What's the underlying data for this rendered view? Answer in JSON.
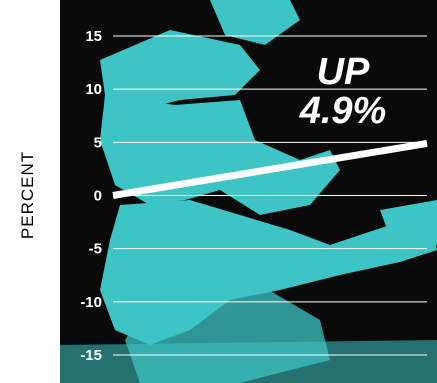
{
  "chart_data": {
    "type": "line",
    "ylabel": "PERCENT",
    "ylim": [
      -15,
      15
    ],
    "yticks": [
      "15",
      "10",
      "5",
      "0",
      "-5",
      "-10",
      "-15"
    ],
    "ytick_values": [
      15,
      10,
      5,
      0,
      -5,
      -10,
      -15
    ],
    "series": [
      {
        "x": [
          0,
          1
        ],
        "values": [
          0,
          4.9
        ]
      }
    ],
    "annotation": {
      "line1": "UP",
      "line2": "4.9%"
    },
    "grid": true,
    "colors": {
      "background": "#0a0a0a",
      "artwork": "#3ec4c4",
      "line": "#ffffff",
      "grid": "#ffffff"
    }
  }
}
